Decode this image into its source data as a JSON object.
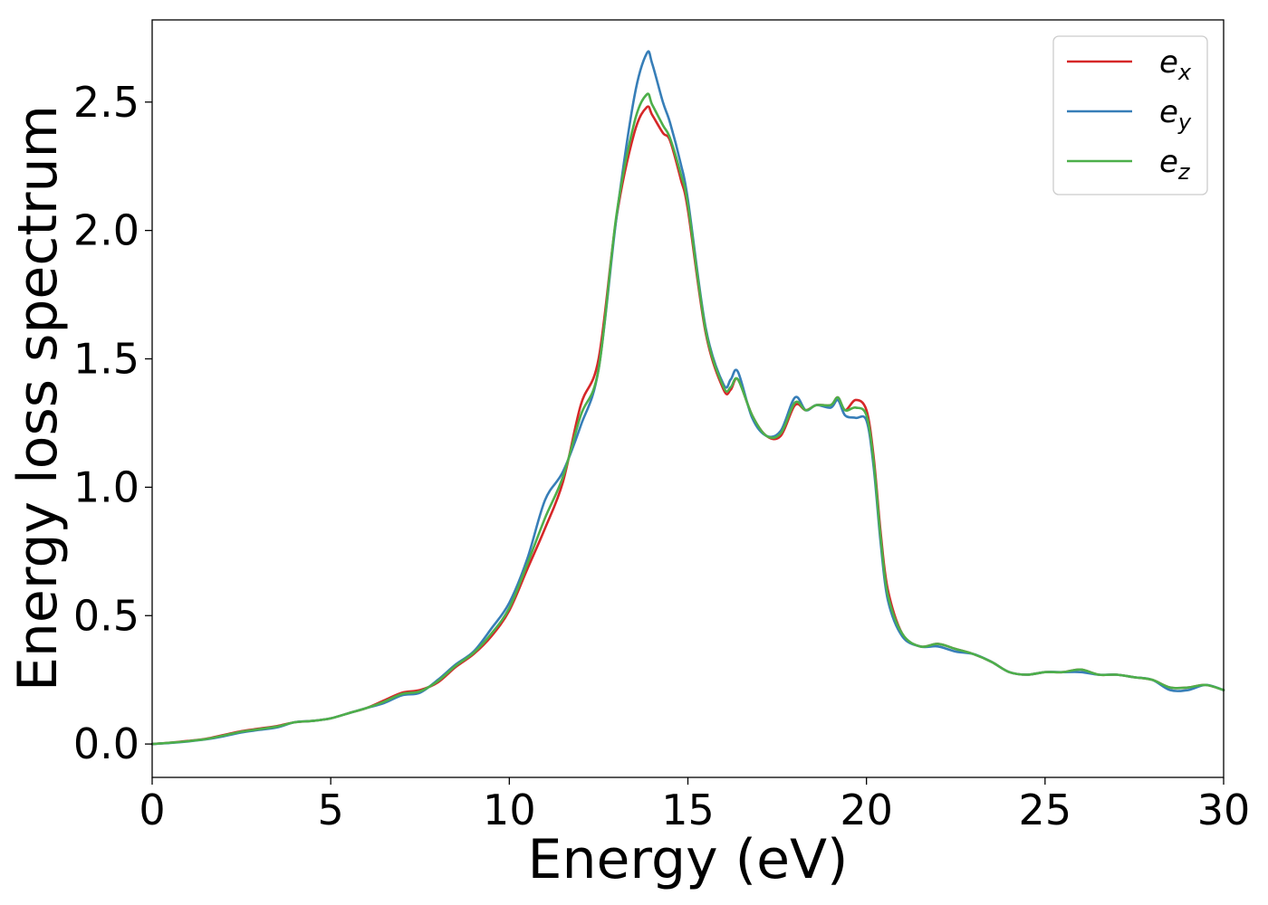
{
  "chart_data": {
    "type": "line",
    "title": "",
    "xlabel": "Energy (eV)",
    "ylabel": "Energy loss spectrum",
    "xlim": [
      0,
      30
    ],
    "ylim": [
      -0.13,
      2.82
    ],
    "xticks": [
      "0",
      "5",
      "10",
      "15",
      "20",
      "25",
      "30"
    ],
    "yticks": [
      "0.0",
      "0.5",
      "1.0",
      "1.5",
      "2.0",
      "2.5"
    ],
    "grid": false,
    "legend_position": "top-right",
    "x": [
      0,
      0.5,
      1,
      1.5,
      2,
      2.5,
      3,
      3.5,
      4,
      4.5,
      5,
      5.5,
      6,
      6.5,
      7,
      7.5,
      8,
      8.5,
      9,
      9.5,
      10,
      10.5,
      11,
      11.5,
      12,
      12.5,
      13,
      13.5,
      13.85,
      14,
      14.3,
      14.5,
      14.8,
      15,
      15.5,
      16,
      16.2,
      16.4,
      16.8,
      17.2,
      17.6,
      18,
      18.3,
      18.6,
      19,
      19.2,
      19.4,
      19.7,
      20,
      20.2,
      20.4,
      20.6,
      21,
      21.5,
      22,
      22.5,
      23,
      23.5,
      24,
      24.5,
      25,
      25.5,
      26,
      26.5,
      27,
      27.5,
      28,
      28.5,
      29,
      29.5,
      30
    ],
    "series": [
      {
        "name": "e",
        "subscript": "x",
        "color": "#d62728",
        "values": [
          0.0,
          0.005,
          0.012,
          0.02,
          0.035,
          0.05,
          0.06,
          0.07,
          0.085,
          0.09,
          0.1,
          0.12,
          0.14,
          0.17,
          0.2,
          0.21,
          0.24,
          0.3,
          0.35,
          0.42,
          0.52,
          0.68,
          0.84,
          1.02,
          1.32,
          1.5,
          2.05,
          2.38,
          2.48,
          2.45,
          2.38,
          2.35,
          2.2,
          2.08,
          1.6,
          1.38,
          1.38,
          1.42,
          1.28,
          1.2,
          1.2,
          1.32,
          1.3,
          1.32,
          1.32,
          1.35,
          1.3,
          1.34,
          1.3,
          1.12,
          0.82,
          0.6,
          0.43,
          0.38,
          0.39,
          0.37,
          0.35,
          0.32,
          0.28,
          0.27,
          0.28,
          0.28,
          0.29,
          0.27,
          0.27,
          0.26,
          0.25,
          0.22,
          0.22,
          0.23,
          0.21
        ]
      },
      {
        "name": "e",
        "subscript": "y",
        "color": "#377eb8",
        "values": [
          0.0,
          0.004,
          0.01,
          0.018,
          0.03,
          0.045,
          0.055,
          0.065,
          0.085,
          0.09,
          0.1,
          0.12,
          0.14,
          0.16,
          0.19,
          0.2,
          0.25,
          0.31,
          0.36,
          0.45,
          0.55,
          0.72,
          0.95,
          1.06,
          1.24,
          1.46,
          2.05,
          2.52,
          2.69,
          2.65,
          2.5,
          2.42,
          2.26,
          2.12,
          1.62,
          1.4,
          1.42,
          1.45,
          1.27,
          1.2,
          1.22,
          1.35,
          1.3,
          1.32,
          1.31,
          1.34,
          1.28,
          1.27,
          1.26,
          1.08,
          0.78,
          0.56,
          0.42,
          0.38,
          0.38,
          0.36,
          0.35,
          0.32,
          0.28,
          0.27,
          0.28,
          0.28,
          0.28,
          0.27,
          0.27,
          0.26,
          0.25,
          0.21,
          0.21,
          0.23,
          0.21
        ]
      },
      {
        "name": "e",
        "subscript": "z",
        "color": "#4daf4a",
        "values": [
          0.0,
          0.005,
          0.011,
          0.019,
          0.033,
          0.048,
          0.058,
          0.068,
          0.085,
          0.09,
          0.1,
          0.12,
          0.14,
          0.165,
          0.195,
          0.205,
          0.245,
          0.305,
          0.355,
          0.43,
          0.53,
          0.7,
          0.88,
          1.04,
          1.28,
          1.46,
          2.06,
          2.42,
          2.53,
          2.49,
          2.41,
          2.36,
          2.22,
          2.1,
          1.61,
          1.39,
          1.39,
          1.42,
          1.28,
          1.2,
          1.21,
          1.33,
          1.3,
          1.32,
          1.32,
          1.35,
          1.3,
          1.31,
          1.28,
          1.1,
          0.8,
          0.58,
          0.43,
          0.38,
          0.39,
          0.37,
          0.35,
          0.32,
          0.28,
          0.27,
          0.28,
          0.28,
          0.29,
          0.27,
          0.27,
          0.26,
          0.25,
          0.22,
          0.22,
          0.23,
          0.21
        ]
      }
    ]
  }
}
